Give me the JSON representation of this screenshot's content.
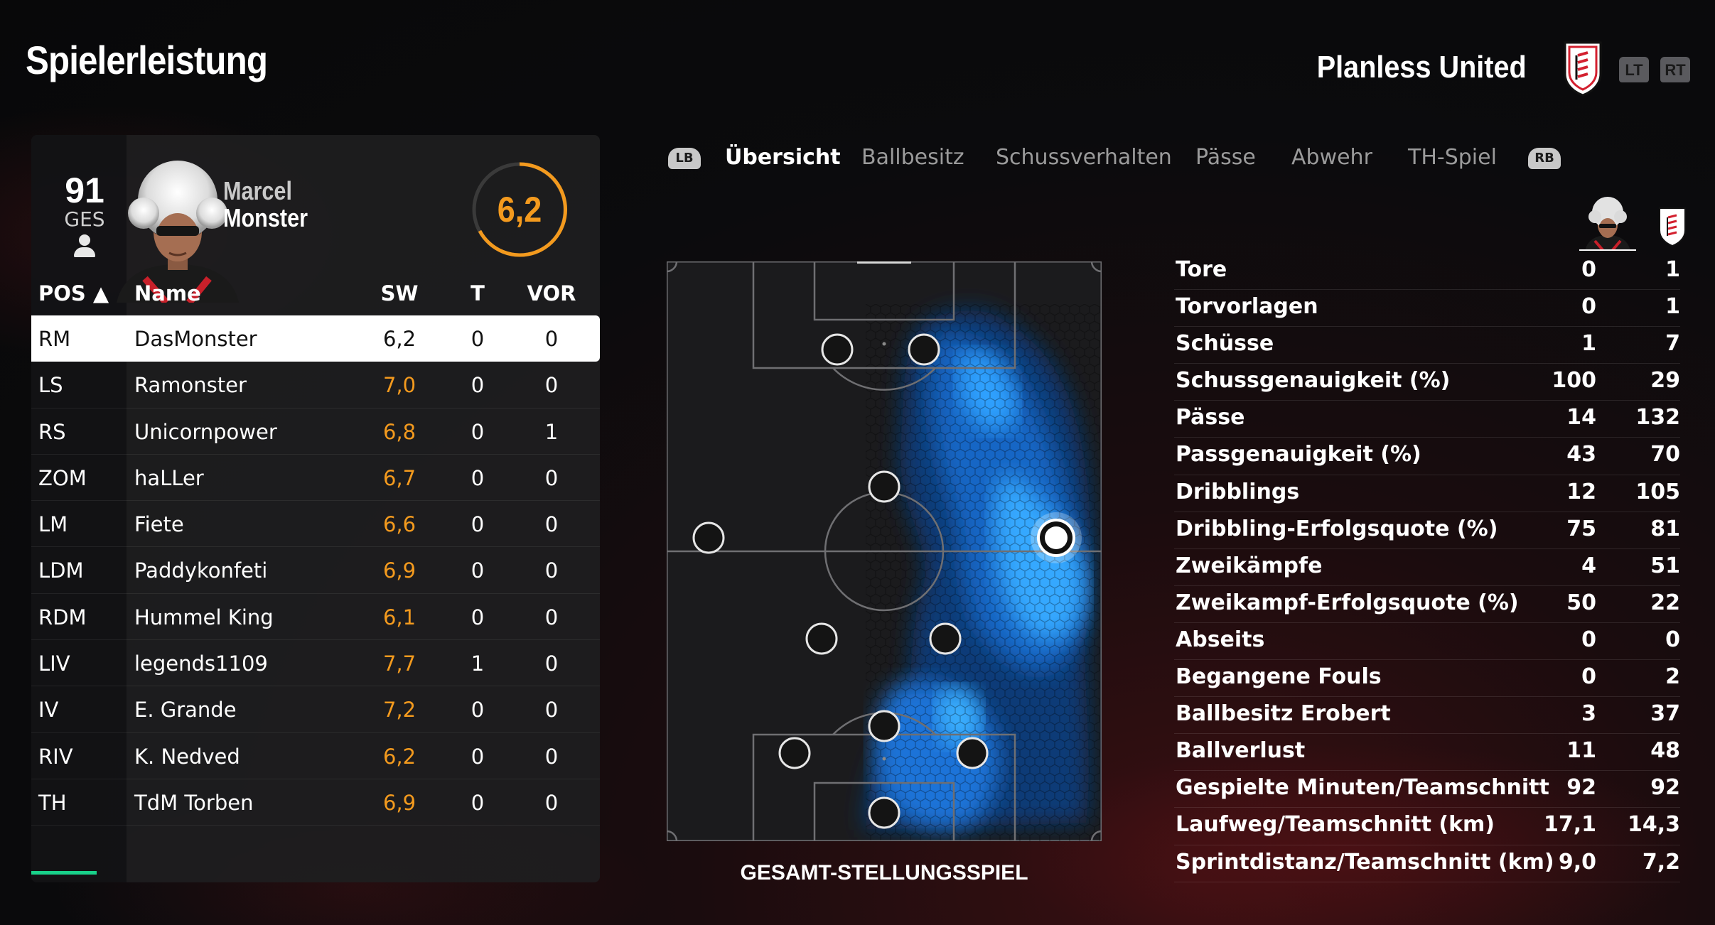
{
  "header": {
    "title": "Spielerleistung",
    "team_name": "Planless United",
    "lt_label": "LT",
    "rt_label": "RT"
  },
  "player_card": {
    "overall": "91",
    "overall_label": "GES",
    "first_name": "Marcel",
    "last_name": "Monster",
    "rating": "6,2"
  },
  "table": {
    "headers": {
      "pos": "POS ▲",
      "name": "Name",
      "sw": "SW",
      "t": "T",
      "vor": "VOR"
    },
    "rows": [
      {
        "pos": "RM",
        "name": "DasMonster",
        "sw": "6,2",
        "t": "0",
        "vor": "0",
        "selected": true
      },
      {
        "pos": "LS",
        "name": "Ramonster",
        "sw": "7,0",
        "t": "0",
        "vor": "0"
      },
      {
        "pos": "RS",
        "name": "Unicornpower",
        "sw": "6,8",
        "t": "0",
        "vor": "1"
      },
      {
        "pos": "ZOM",
        "name": "haLLer",
        "sw": "6,7",
        "t": "0",
        "vor": "0"
      },
      {
        "pos": "LM",
        "name": "Fiete",
        "sw": "6,6",
        "t": "0",
        "vor": "0"
      },
      {
        "pos": "LDM",
        "name": "Paddykonfeti",
        "sw": "6,9",
        "t": "0",
        "vor": "0"
      },
      {
        "pos": "RDM",
        "name": "Hummel King",
        "sw": "6,1",
        "t": "0",
        "vor": "0"
      },
      {
        "pos": "LIV",
        "name": "legends1109",
        "sw": "7,7",
        "t": "1",
        "vor": "0"
      },
      {
        "pos": "IV",
        "name": "E. Grande",
        "sw": "7,2",
        "t": "0",
        "vor": "0"
      },
      {
        "pos": "RIV",
        "name": "K. Nedved",
        "sw": "6,2",
        "t": "0",
        "vor": "0"
      },
      {
        "pos": "TH",
        "name": "TdM Torben",
        "sw": "6,9",
        "t": "0",
        "vor": "0"
      }
    ]
  },
  "tabs": {
    "lb": "LB",
    "rb": "RB",
    "items": [
      "Übersicht",
      "Ballbesitz",
      "Schussverhalten",
      "Pässe",
      "Abwehr",
      "TH-Spiel"
    ],
    "active": "Übersicht"
  },
  "pitch": {
    "caption": "GESAMT-STELLUNGSSPIEL"
  },
  "stats": [
    {
      "label": "Tore",
      "player": "0",
      "team": "1"
    },
    {
      "label": "Torvorlagen",
      "player": "0",
      "team": "1"
    },
    {
      "label": "Schüsse",
      "player": "1",
      "team": "7"
    },
    {
      "label": "Schussgenauigkeit (%)",
      "player": "100",
      "team": "29"
    },
    {
      "label": "Pässe",
      "player": "14",
      "team": "132"
    },
    {
      "label": "Passgenauigkeit (%)",
      "player": "43",
      "team": "70"
    },
    {
      "label": "Dribblings",
      "player": "12",
      "team": "105"
    },
    {
      "label": "Dribbling-Erfolgsquote (%)",
      "player": "75",
      "team": "81"
    },
    {
      "label": "Zweikämpfe",
      "player": "4",
      "team": "51"
    },
    {
      "label": "Zweikampf-Erfolgsquote (%)",
      "player": "50",
      "team": "22"
    },
    {
      "label": "Abseits",
      "player": "0",
      "team": "0"
    },
    {
      "label": "Begangene Fouls",
      "player": "0",
      "team": "2"
    },
    {
      "label": "Ballbesitz Erobert",
      "player": "3",
      "team": "37"
    },
    {
      "label": "Ballverlust",
      "player": "11",
      "team": "48"
    },
    {
      "label": "Gespielte Minuten/Teamschnitt",
      "player": "92",
      "team": "92"
    },
    {
      "label": "Laufweg/Teamschnitt (km)",
      "player": "17,1",
      "team": "14,3"
    },
    {
      "label": "Sprintdistanz/Teamschnitt (km)",
      "player": "9,0",
      "team": "7,2"
    }
  ],
  "colors": {
    "accent_orange": "#f39a1e",
    "heatmap_blue": "#1e90ff",
    "selection_green": "#19d18a"
  }
}
